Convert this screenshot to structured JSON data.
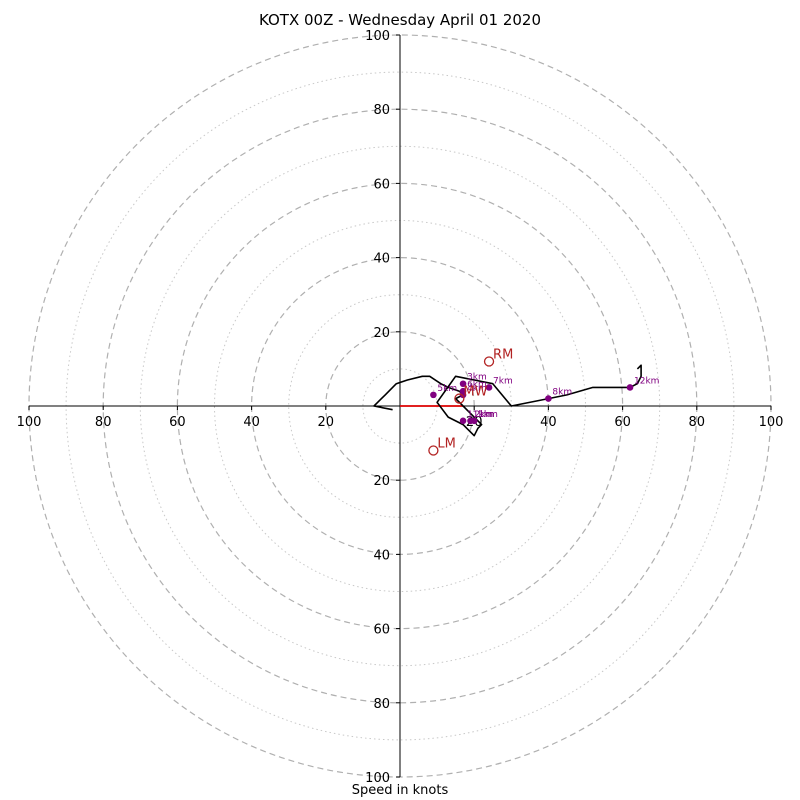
{
  "title": "KOTX 00Z - Wednesday April 01 2020",
  "chart_data": {
    "type": "hodograph",
    "title": "KOTX 00Z - Wednesday April 01 2020",
    "xlabel": "Speed in knots",
    "ylabel": "",
    "range": [
      -100,
      100
    ],
    "ring_major": [
      20,
      40,
      60,
      80,
      100
    ],
    "ring_minor": [
      10,
      30,
      50,
      70,
      90
    ],
    "x_tick_labels": [
      "100",
      "80",
      "60",
      "40",
      "20",
      "20",
      "40",
      "60",
      "80",
      "100"
    ],
    "y_tick_labels": [
      "100",
      "80",
      "60",
      "40",
      "20",
      "20",
      "40",
      "60",
      "80",
      "100"
    ],
    "grid": true,
    "colors": {
      "trace": "#000000",
      "height_points": "#800080",
      "motion": "#b22222",
      "grid": "#b0b0b0"
    },
    "hodograph_trace": {
      "u": [
        -2,
        -7,
        -6,
        -4,
        -3,
        -2,
        -1,
        2,
        6,
        8,
        11,
        13,
        16,
        17,
        15,
        17,
        19,
        22,
        21,
        20,
        18,
        17,
        13,
        10,
        15,
        25,
        30,
        40,
        45,
        52,
        62,
        64,
        65,
        65,
        64
      ],
      "v": [
        -1,
        0,
        1,
        3,
        4,
        5,
        6,
        7,
        8,
        8,
        6,
        5,
        4,
        3,
        2,
        0,
        -2,
        -5,
        -6,
        -8,
        -6,
        -5,
        -3,
        1,
        8,
        6,
        0,
        2,
        3,
        5,
        5,
        6,
        8,
        11,
        10
      ]
    },
    "height_points": [
      {
        "label": "3km",
        "u": 17,
        "v": 6
      },
      {
        "label": "4km",
        "u": 17,
        "v": 3
      },
      {
        "label": "5km",
        "u": 9,
        "v": 3
      },
      {
        "label": "6km",
        "u": 17,
        "v": 4
      },
      {
        "label": "7km",
        "u": 24,
        "v": 5
      },
      {
        "label": "8km",
        "u": 40,
        "v": 2
      },
      {
        "label": "12km",
        "u": 62,
        "v": 5
      },
      {
        "label": "11km",
        "u": 17,
        "v": -4
      },
      {
        "label": "2km",
        "u": 19,
        "v": -4
      },
      {
        "label": "1km",
        "u": 20,
        "v": -4
      }
    ],
    "motion_markers": [
      {
        "label": "RM",
        "u": 24,
        "v": 12
      },
      {
        "label": "MW",
        "u": 16,
        "v": 2
      },
      {
        "label": "LM",
        "u": 9,
        "v": -12
      }
    ],
    "shear_vector": {
      "u_from": 0,
      "v_from": 0,
      "u_to": 17,
      "v_to": 0
    }
  }
}
